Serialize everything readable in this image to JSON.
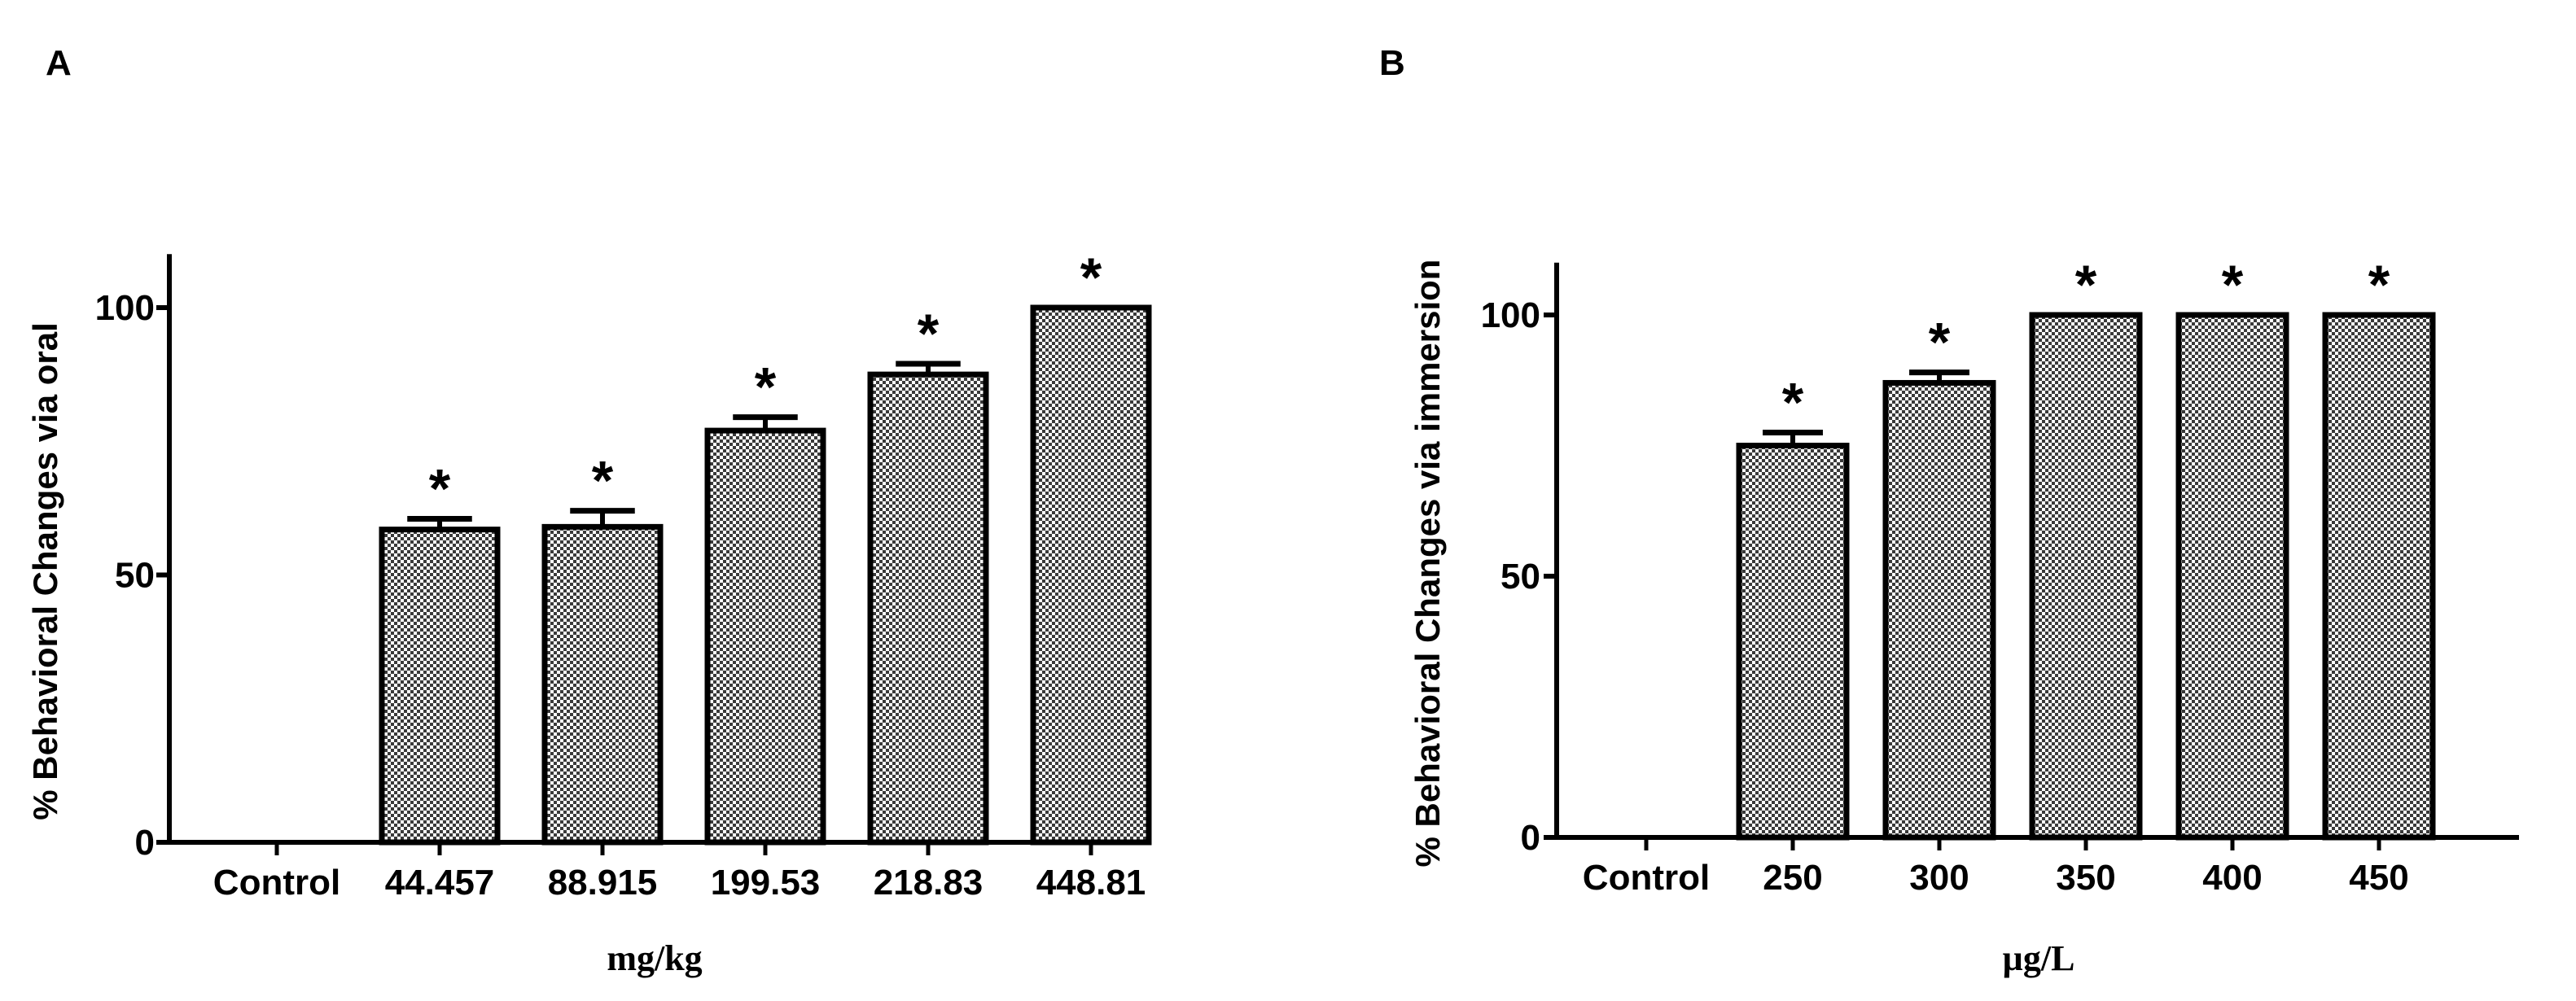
{
  "colors": {
    "ink": "#000000",
    "bar_pattern_dark": "#4a4a4a",
    "bar_pattern_light": "#ffffff"
  },
  "chart_data": [
    {
      "type": "bar",
      "panel": "A",
      "categories": [
        "Control",
        "44.457",
        "88.915",
        "199.53",
        "218.83",
        "448.81"
      ],
      "values": [
        0,
        58.5,
        59,
        77,
        87.5,
        100
      ],
      "error": [
        0,
        2,
        3,
        2.5,
        2,
        0
      ],
      "significant": [
        false,
        true,
        true,
        true,
        true,
        true
      ],
      "significance_marker": "*",
      "xlabel": "mg/kg",
      "ylabel": "% Behavioral Changes via oral",
      "ylim": [
        0,
        110
      ],
      "yticks": [
        0,
        50,
        100
      ],
      "grid": false
    },
    {
      "type": "bar",
      "panel": "B",
      "categories": [
        "Control",
        "250",
        "300",
        "350",
        "400",
        "450"
      ],
      "values": [
        0,
        75,
        87,
        100,
        100,
        100
      ],
      "error": [
        0,
        2.5,
        2,
        0,
        0,
        0
      ],
      "significant": [
        false,
        true,
        true,
        true,
        true,
        true
      ],
      "significance_marker": "*",
      "xlabel": "µg/L",
      "ylabel": "% Behavioral Changes via immersion",
      "ylim": [
        0,
        110
      ],
      "yticks": [
        0,
        50,
        100
      ],
      "grid": false
    }
  ]
}
